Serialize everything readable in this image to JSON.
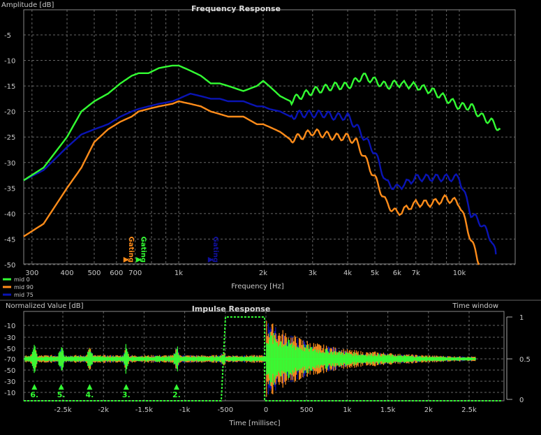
{
  "frequency_response": {
    "title": "Frequency Response",
    "ylabel": "Amplitude [dB]",
    "xlabel": "Frequency [Hz]",
    "y_ticks": [
      "-5",
      "-10",
      "-15",
      "-20",
      "-25",
      "-30",
      "-35",
      "-40",
      "-45",
      "-50"
    ],
    "x_tick_labels": [
      "300",
      "400",
      "500",
      "600",
      "700",
      "1k",
      "2k",
      "3k",
      "4k",
      "5k",
      "6k",
      "7k",
      "10k"
    ],
    "gating_labels": [
      {
        "text": "Gating",
        "color": "#ff8c1a",
        "freq": 650
      },
      {
        "text": "Gating",
        "color": "#33ff33",
        "freq": 720
      },
      {
        "text": "Gating",
        "color": "#1010a0",
        "freq": 1300
      }
    ],
    "legend": [
      {
        "name": "mid 0",
        "color": "#33ff33"
      },
      {
        "name": "mid 90",
        "color": "#ff8c1a"
      },
      {
        "name": "mid 75",
        "color": "#0a14b4"
      }
    ]
  },
  "impulse_response": {
    "title": "Impulse Response",
    "ylabel": "Normalized Value [dB]",
    "xlabel": "Time [millisec]",
    "time_window_label": "Time window",
    "y_ticks": [
      "-10",
      "-30",
      "-50",
      "-70",
      "-50",
      "-30",
      "-10"
    ],
    "x_tick_labels": [
      "-2.5k",
      "-2k",
      "-1.5k",
      "-1k",
      "-500",
      "0",
      "500",
      "1k",
      "1.5k",
      "2k",
      "2.5k"
    ],
    "right_ticks": [
      "1",
      "0.5",
      "0"
    ],
    "markers": [
      "6.",
      "5.",
      "4.",
      "3.",
      "2."
    ]
  },
  "chart_data": [
    {
      "type": "line",
      "title": "Frequency Response",
      "xlabel": "Frequency [Hz]",
      "ylabel": "Amplitude [dB]",
      "x_scale": "log",
      "xlim": [
        280,
        14000
      ],
      "ylim": [
        -50,
        -2
      ],
      "grid": true,
      "legend_position": "bottom-left",
      "series": [
        {
          "name": "mid 0",
          "color": "#33ff33",
          "x": [
            280,
            330,
            400,
            450,
            500,
            560,
            620,
            680,
            720,
            780,
            850,
            950,
            1000,
            1100,
            1200,
            1300,
            1400,
            1500,
            1700,
            1900,
            2000,
            2100,
            2300,
            2500,
            2700,
            3000,
            3300,
            3600,
            4000,
            4300,
            4500,
            5000,
            5500,
            6000,
            7000,
            8000,
            9000,
            10000,
            11000,
            12000,
            13000,
            14000
          ],
          "y": [
            -33.5,
            -31,
            -25,
            -20,
            -18,
            -16.5,
            -14.5,
            -13,
            -12.5,
            -12.5,
            -11.5,
            -11,
            -11,
            -12,
            -13,
            -14.5,
            -14.5,
            -15,
            -16,
            -15,
            -14,
            -15,
            -17,
            -18,
            -17,
            -16,
            -15.5,
            -15,
            -15,
            -14,
            -13,
            -14,
            -15,
            -14.5,
            -15,
            -16,
            -17.5,
            -19,
            -19,
            -21,
            -22,
            -23.5
          ]
        },
        {
          "name": "mid 90",
          "color": "#ff8c1a",
          "x": [
            280,
            330,
            400,
            450,
            500,
            560,
            620,
            680,
            720,
            780,
            850,
            950,
            1000,
            1100,
            1200,
            1300,
            1400,
            1500,
            1700,
            1900,
            2000,
            2100,
            2300,
            2500,
            2700,
            3000,
            3300,
            3600,
            4000,
            4300,
            4500,
            5000,
            5500,
            6000,
            7000,
            8000,
            9000,
            10000,
            11000,
            11800
          ],
          "y": [
            -44.5,
            -42,
            -35,
            -31,
            -26,
            -23.5,
            -22,
            -21,
            -20,
            -19.5,
            -19,
            -18.5,
            -18,
            -18.5,
            -19,
            -20,
            -20.5,
            -21,
            -21,
            -22.5,
            -22.5,
            -23,
            -24,
            -25.5,
            -25,
            -24,
            -24.5,
            -25,
            -25,
            -26,
            -28,
            -33,
            -38,
            -40,
            -38,
            -38,
            -37,
            -38,
            -45,
            -50
          ]
        },
        {
          "name": "mid 75",
          "color": "#0a14b4",
          "x": [
            280,
            330,
            400,
            450,
            500,
            560,
            620,
            680,
            720,
            780,
            850,
            950,
            1000,
            1100,
            1200,
            1300,
            1400,
            1500,
            1700,
            1900,
            2000,
            2100,
            2300,
            2500,
            2700,
            3000,
            3300,
            3600,
            4000,
            4300,
            4500,
            5000,
            5500,
            6000,
            7000,
            8000,
            9000,
            10000,
            11000,
            12000,
            13000,
            13500
          ],
          "y": [
            -33.5,
            -31.5,
            -27,
            -24.5,
            -23.5,
            -22.5,
            -21,
            -20,
            -19.5,
            -19,
            -18.5,
            -18,
            -17.5,
            -16.5,
            -17,
            -17.5,
            -17.5,
            -18,
            -18,
            -19,
            -19,
            -19.5,
            -20,
            -21,
            -20.5,
            -20.5,
            -20.5,
            -21,
            -21,
            -23,
            -24.5,
            -28,
            -34,
            -35,
            -33,
            -33,
            -33,
            -33,
            -40,
            -42,
            -45,
            -48
          ]
        }
      ]
    },
    {
      "type": "area",
      "title": "Impulse Response",
      "xlabel": "Time [millisec]",
      "ylabel": "Normalized Value [dB]",
      "xlim": [
        -3000,
        3000
      ],
      "y_right_ticks": [
        0,
        0.5,
        1
      ],
      "grid": true,
      "time_window": {
        "start_ms": -550,
        "end_ms": 2900
      },
      "markers": [
        {
          "label": "6.",
          "t": -2850
        },
        {
          "label": "5.",
          "t": -2520
        },
        {
          "label": "4.",
          "t": -2170
        },
        {
          "label": "3.",
          "t": -1720
        },
        {
          "label": "2.",
          "t": -1100
        }
      ],
      "series": [
        {
          "name": "mid 0",
          "color": "#33ff33"
        },
        {
          "name": "mid 90",
          "color": "#ff8c1a"
        },
        {
          "name": "mid 75",
          "color": "#0a14b4"
        }
      ]
    }
  ]
}
